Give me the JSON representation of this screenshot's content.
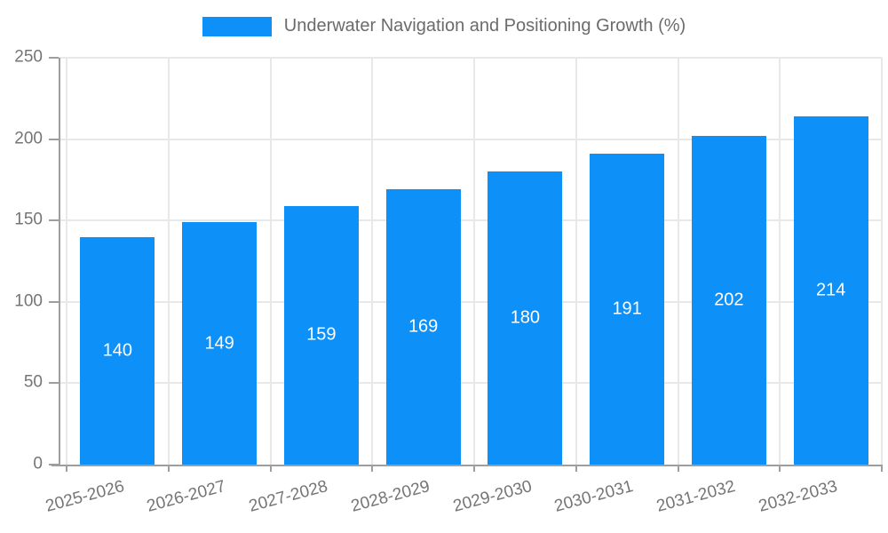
{
  "legend": {
    "label": "Underwater Navigation and Positioning Growth (%)"
  },
  "chart_data": {
    "type": "bar",
    "title": "Underwater Navigation and Positioning Growth (%)",
    "categories": [
      "2025-2026",
      "2026-2027",
      "2027-2028",
      "2028-2029",
      "2029-2030",
      "2030-2031",
      "2031-2032",
      "2032-2033"
    ],
    "values": [
      140,
      149,
      159,
      169,
      180,
      191,
      202,
      214
    ],
    "xlabel": "",
    "ylabel": "",
    "ylim": [
      0,
      250
    ],
    "yticks": [
      0,
      50,
      100,
      150,
      200,
      250
    ],
    "grid": true,
    "legend_position": "top-center",
    "bar_labels_inside": true
  },
  "colors": {
    "bar": "#0d90f7",
    "bar_label_text": "#ffffff",
    "axis_line": "#9e9e9e",
    "gridline": "#e8e8e8",
    "axis_text": "#757575",
    "legend_text": "#6b6b6b",
    "background": "#ffffff"
  }
}
